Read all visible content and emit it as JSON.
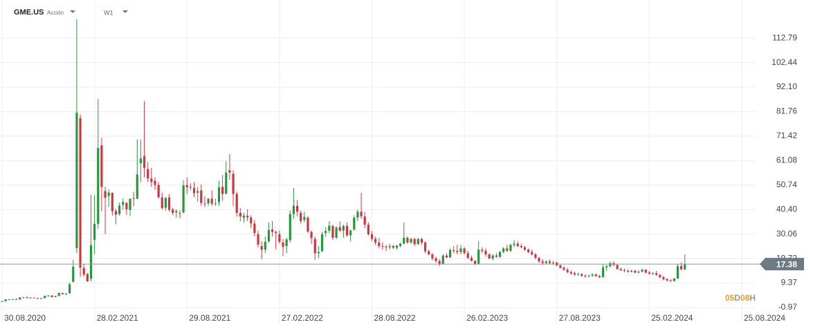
{
  "header": {
    "symbol": "GME.US",
    "instrument": "Acción",
    "timeframe": "W1"
  },
  "chart_data": {
    "type": "candlestick",
    "categories": [
      "30.08.2020",
      null,
      null,
      null,
      null,
      null,
      null,
      null,
      null,
      null,
      null,
      null,
      null,
      null,
      null,
      null,
      null,
      null,
      null,
      null,
      null,
      null,
      null,
      null,
      null,
      null,
      "28.02.2021",
      null,
      null,
      null,
      null,
      null,
      null,
      null,
      null,
      null,
      null,
      null,
      null,
      null,
      null,
      null,
      null,
      null,
      null,
      null,
      null,
      null,
      null,
      null,
      null,
      null,
      "29.08.2021",
      null,
      null,
      null,
      null,
      null,
      null,
      null,
      null,
      null,
      null,
      null,
      null,
      null,
      null,
      null,
      null,
      null,
      null,
      null,
      null,
      null,
      null,
      null,
      null,
      null,
      "27.02.2022",
      null,
      null,
      null,
      null,
      null,
      null,
      null,
      null,
      null,
      null,
      null,
      null,
      null,
      null,
      null,
      null,
      null,
      null,
      null,
      null,
      null,
      null,
      null,
      null,
      null,
      "28.08.2022",
      null,
      null,
      null,
      null,
      null,
      null,
      null,
      null,
      null,
      null,
      null,
      null,
      null,
      null,
      null,
      null,
      null,
      null,
      null,
      null,
      null,
      null,
      null,
      null,
      null,
      "26.02.2023",
      null,
      null,
      null,
      null,
      null,
      null,
      null,
      null,
      null,
      null,
      null,
      null,
      null,
      null,
      null,
      null,
      null,
      null,
      null,
      null,
      null,
      null,
      null,
      null,
      null,
      "27.08.2023",
      null,
      null,
      null,
      null,
      null,
      null,
      null,
      null,
      null,
      null,
      null,
      null,
      null,
      null,
      null,
      null,
      null,
      null,
      null,
      null,
      null,
      null,
      null,
      null,
      null,
      "25.02.2024",
      null,
      null,
      null,
      null,
      null,
      null,
      null,
      null,
      null,
      null,
      null,
      null,
      null,
      null,
      null,
      null,
      null,
      null,
      null,
      null,
      null,
      null,
      null,
      null,
      null,
      "25.08.2024"
    ],
    "ohlc": [
      [
        1.6,
        1.8,
        1.5,
        1.7
      ],
      [
        1.7,
        2.6,
        1.7,
        2.5
      ],
      [
        2.5,
        2.6,
        2.2,
        2.4
      ],
      [
        2.4,
        2.7,
        2.3,
        2.6
      ],
      [
        2.6,
        2.9,
        2.3,
        2.4
      ],
      [
        2.4,
        3.4,
        2.4,
        3.3
      ],
      [
        3.3,
        3.5,
        3.0,
        3.4
      ],
      [
        3.4,
        3.7,
        3.0,
        3.1
      ],
      [
        3.1,
        3.4,
        2.9,
        3.2
      ],
      [
        3.2,
        3.3,
        2.9,
        3.0
      ],
      [
        3.0,
        3.2,
        2.7,
        2.8
      ],
      [
        2.8,
        3.1,
        2.6,
        3.0
      ],
      [
        3.0,
        4.0,
        3.0,
        4.0
      ],
      [
        4.0,
        4.3,
        3.7,
        4.1
      ],
      [
        4.1,
        4.3,
        3.3,
        3.5
      ],
      [
        3.5,
        4.0,
        3.4,
        3.9
      ],
      [
        3.9,
        5.4,
        3.9,
        5.2
      ],
      [
        5.2,
        5.3,
        4.6,
        4.7
      ],
      [
        4.7,
        5.1,
        4.3,
        5.0
      ],
      [
        5.0,
        9.6,
        5.0,
        8.9
      ],
      [
        9.8,
        19.2,
        9.8,
        16.3
      ],
      [
        24.1,
        120.8,
        22.0,
        81.3
      ],
      [
        79.0,
        80.5,
        12.0,
        15.9
      ],
      [
        15.8,
        17.5,
        12.1,
        13.0
      ],
      [
        13.2,
        13.6,
        9.9,
        10.1
      ],
      [
        11.2,
        46.7,
        10.0,
        25.4
      ],
      [
        27.6,
        46.4,
        21.5,
        34.4
      ],
      [
        34.4,
        87.1,
        32.3,
        66.4
      ],
      [
        67.5,
        70.7,
        39.8,
        50.0
      ],
      [
        48.2,
        50.0,
        30.0,
        45.4
      ],
      [
        46.1,
        49.0,
        41.5,
        47.6
      ],
      [
        47.5,
        47.6,
        37.8,
        39.7
      ],
      [
        39.8,
        40.7,
        34.2,
        38.3
      ],
      [
        38.5,
        43.4,
        37.8,
        42.1
      ],
      [
        42.4,
        45.1,
        40.3,
        43.6
      ],
      [
        43.2,
        43.6,
        38.2,
        40.5
      ],
      [
        40.2,
        45.1,
        37.7,
        45.0
      ],
      [
        45.2,
        48.0,
        41.8,
        44.9
      ],
      [
        45.0,
        70.0,
        44.8,
        55.2
      ],
      [
        60.0,
        70.0,
        52.0,
        62.0
      ],
      [
        63.0,
        86.2,
        54.0,
        58.0
      ],
      [
        57.5,
        60.5,
        52.0,
        53.5
      ],
      [
        53.5,
        58.0,
        50.0,
        52.0
      ],
      [
        52.5,
        54.0,
        48.7,
        50.8
      ],
      [
        50.8,
        52.0,
        45.0,
        45.6
      ],
      [
        45.5,
        47.5,
        40.5,
        41.0
      ],
      [
        41.2,
        45.6,
        40.0,
        45.3
      ],
      [
        45.5,
        47.0,
        39.6,
        40.3
      ],
      [
        40.5,
        41.2,
        38.0,
        39.0
      ],
      [
        39.2,
        40.5,
        37.0,
        39.8
      ],
      [
        39.0,
        40.0,
        36.7,
        38.9
      ],
      [
        39.2,
        52.8,
        38.8,
        50.6
      ],
      [
        50.7,
        54.0,
        47.0,
        49.8
      ],
      [
        50.0,
        51.5,
        48.5,
        49.8
      ],
      [
        49.5,
        52.0,
        45.7,
        47.3
      ],
      [
        47.5,
        50.0,
        43.8,
        48.2
      ],
      [
        48.5,
        51.0,
        42.0,
        43.2
      ],
      [
        43.0,
        46.0,
        41.5,
        42.9
      ],
      [
        43.0,
        45.2,
        42.0,
        45.0
      ],
      [
        45.0,
        48.5,
        42.0,
        42.9
      ],
      [
        43.0,
        45.0,
        42.0,
        43.0
      ],
      [
        43.5,
        52.6,
        42.0,
        49.8
      ],
      [
        50.0,
        55.0,
        44.0,
        47.0
      ],
      [
        47.0,
        61.0,
        47.0,
        56.0
      ],
      [
        57.0,
        63.8,
        53.0,
        56.0
      ],
      [
        55.5,
        57.0,
        42.0,
        47.0
      ],
      [
        47.0,
        48.0,
        37.5,
        39.0
      ],
      [
        39.0,
        41.0,
        35.5,
        37.5
      ],
      [
        37.0,
        39.0,
        35.0,
        37.8
      ],
      [
        37.8,
        40.5,
        35.5,
        37.1
      ],
      [
        37.0,
        38.0,
        32.5,
        34.6
      ],
      [
        34.5,
        36.0,
        29.0,
        30.5
      ],
      [
        30.0,
        31.5,
        24.5,
        25.6
      ],
      [
        25.0,
        27.0,
        19.4,
        23.5
      ],
      [
        23.5,
        29.0,
        22.0,
        26.8
      ],
      [
        27.0,
        35.0,
        26.5,
        31.8
      ],
      [
        32.0,
        35.5,
        29.0,
        31.0
      ],
      [
        31.0,
        31.5,
        23.6,
        30.5
      ],
      [
        30.0,
        31.5,
        26.0,
        26.8
      ],
      [
        26.5,
        28.0,
        20.8,
        24.7
      ],
      [
        25.0,
        28.5,
        22.0,
        27.8
      ],
      [
        27.5,
        40.0,
        26.5,
        38.5
      ],
      [
        38.5,
        49.5,
        36.5,
        42.0
      ],
      [
        42.0,
        44.5,
        37.5,
        39.5
      ],
      [
        39.0,
        40.0,
        34.5,
        35.5
      ],
      [
        36.0,
        39.5,
        35.0,
        37.3
      ],
      [
        37.0,
        37.5,
        30.5,
        31.1
      ],
      [
        31.0,
        31.5,
        26.0,
        28.4
      ],
      [
        28.0,
        29.0,
        19.2,
        22.0
      ],
      [
        22.0,
        25.0,
        19.8,
        22.5
      ],
      [
        22.8,
        31.0,
        22.5,
        30.0
      ],
      [
        30.5,
        33.0,
        29.0,
        31.4
      ],
      [
        31.5,
        35.5,
        30.5,
        33.6
      ],
      [
        33.5,
        34.0,
        27.5,
        28.5
      ],
      [
        28.5,
        33.5,
        28.0,
        32.8
      ],
      [
        33.0,
        35.5,
        31.0,
        31.5
      ],
      [
        31.5,
        34.0,
        28.5,
        33.5
      ],
      [
        33.5,
        35.0,
        29.0,
        29.5
      ],
      [
        29.5,
        32.0,
        27.0,
        31.5
      ],
      [
        32.0,
        38.0,
        31.5,
        37.0
      ],
      [
        37.0,
        40.5,
        35.5,
        39.5
      ],
      [
        39.5,
        47.5,
        36.5,
        37.5
      ],
      [
        37.5,
        39.5,
        32.5,
        34.0
      ],
      [
        34.0,
        35.0,
        29.5,
        30.0
      ],
      [
        30.0,
        31.5,
        27.0,
        28.0
      ],
      [
        28.0,
        29.0,
        25.5,
        26.5
      ],
      [
        26.5,
        28.5,
        24.0,
        25.0
      ],
      [
        25.0,
        26.5,
        23.5,
        24.7
      ],
      [
        24.8,
        25.5,
        23.0,
        24.5
      ],
      [
        24.5,
        26.0,
        23.5,
        25.0
      ],
      [
        25.0,
        25.5,
        23.8,
        24.3
      ],
      [
        24.3,
        25.5,
        23.5,
        25.2
      ],
      [
        25.0,
        26.5,
        24.5,
        26.0
      ],
      [
        26.0,
        35.0,
        25.8,
        28.5
      ],
      [
        28.5,
        29.0,
        26.0,
        26.5
      ],
      [
        26.5,
        28.5,
        26.0,
        28.0
      ],
      [
        28.0,
        28.5,
        25.0,
        25.8
      ],
      [
        25.8,
        28.5,
        25.5,
        28.0
      ],
      [
        28.0,
        28.5,
        25.5,
        26.5
      ],
      [
        26.5,
        27.0,
        22.0,
        22.8
      ],
      [
        22.8,
        23.5,
        21.0,
        21.5
      ],
      [
        21.5,
        22.0,
        19.0,
        19.8
      ],
      [
        19.8,
        20.5,
        18.0,
        18.7
      ],
      [
        18.7,
        19.5,
        16.5,
        17.5
      ],
      [
        17.5,
        21.5,
        17.2,
        21.0
      ],
      [
        21.0,
        22.0,
        19.8,
        20.2
      ],
      [
        20.2,
        24.0,
        20.0,
        23.3
      ],
      [
        23.3,
        25.0,
        22.0,
        23.0
      ],
      [
        23.0,
        25.5,
        21.5,
        22.5
      ],
      [
        22.5,
        25.5,
        21.5,
        24.0
      ],
      [
        24.0,
        24.5,
        21.5,
        22.0
      ],
      [
        22.0,
        23.0,
        19.5,
        20.0
      ],
      [
        20.0,
        21.0,
        18.5,
        18.8
      ],
      [
        18.8,
        19.0,
        17.0,
        17.5
      ],
      [
        17.5,
        27.0,
        17.5,
        23.5
      ],
      [
        23.5,
        24.5,
        22.0,
        23.0
      ],
      [
        23.0,
        24.0,
        20.5,
        21.5
      ],
      [
        21.5,
        22.0,
        19.5,
        19.8
      ],
      [
        19.8,
        21.5,
        19.0,
        21.0
      ],
      [
        21.0,
        22.0,
        20.0,
        20.5
      ],
      [
        20.5,
        23.0,
        20.0,
        22.5
      ],
      [
        22.5,
        24.5,
        22.0,
        24.0
      ],
      [
        24.0,
        25.5,
        22.5,
        23.0
      ],
      [
        23.0,
        26.0,
        22.5,
        25.5
      ],
      [
        25.5,
        27.5,
        24.5,
        26.0
      ],
      [
        26.0,
        27.0,
        24.5,
        25.0
      ],
      [
        25.0,
        26.0,
        24.0,
        24.5
      ],
      [
        24.5,
        25.0,
        23.0,
        23.5
      ],
      [
        23.5,
        24.0,
        22.0,
        22.5
      ],
      [
        22.5,
        23.5,
        21.0,
        21.5
      ],
      [
        21.5,
        22.0,
        19.5,
        20.0
      ],
      [
        20.0,
        20.5,
        18.0,
        18.5
      ],
      [
        18.5,
        19.5,
        17.0,
        17.8
      ],
      [
        17.8,
        19.0,
        17.5,
        18.5
      ],
      [
        18.5,
        19.2,
        17.5,
        17.8
      ],
      [
        17.8,
        18.8,
        17.0,
        18.0
      ],
      [
        18.0,
        18.5,
        16.5,
        16.8
      ],
      [
        16.8,
        17.5,
        15.5,
        15.8
      ],
      [
        15.8,
        16.5,
        14.5,
        15.0
      ],
      [
        15.0,
        15.8,
        13.5,
        14.0
      ],
      [
        14.0,
        14.8,
        12.8,
        13.5
      ],
      [
        13.5,
        14.2,
        12.5,
        13.0
      ],
      [
        13.0,
        13.8,
        12.5,
        13.2
      ],
      [
        13.2,
        13.5,
        12.0,
        12.5
      ],
      [
        12.5,
        13.0,
        11.5,
        12.2
      ],
      [
        12.2,
        13.0,
        11.8,
        12.5
      ],
      [
        12.5,
        13.5,
        12.0,
        13.0
      ],
      [
        13.0,
        13.5,
        12.0,
        12.3
      ],
      [
        12.3,
        12.8,
        11.5,
        11.8
      ],
      [
        11.8,
        17.5,
        11.8,
        16.0
      ],
      [
        16.0,
        17.0,
        14.5,
        16.5
      ],
      [
        16.5,
        18.5,
        16.0,
        17.8
      ],
      [
        17.8,
        18.5,
        16.5,
        17.0
      ],
      [
        17.0,
        17.5,
        15.0,
        15.3
      ],
      [
        15.3,
        16.0,
        14.5,
        14.8
      ],
      [
        14.8,
        15.5,
        14.0,
        14.5
      ],
      [
        14.5,
        15.2,
        13.8,
        14.2
      ],
      [
        14.2,
        15.0,
        13.8,
        14.6
      ],
      [
        14.6,
        15.0,
        13.5,
        13.8
      ],
      [
        13.8,
        14.8,
        13.5,
        14.2
      ],
      [
        14.2,
        15.5,
        14.0,
        15.0
      ],
      [
        15.0,
        15.3,
        13.5,
        13.8
      ],
      [
        13.8,
        14.5,
        13.0,
        13.3
      ],
      [
        13.3,
        14.0,
        12.8,
        13.5
      ],
      [
        13.5,
        14.5,
        12.5,
        12.8
      ],
      [
        12.8,
        13.2,
        11.5,
        11.8
      ],
      [
        11.8,
        12.5,
        10.5,
        11.0
      ],
      [
        11.0,
        11.5,
        10.0,
        10.5
      ],
      [
        10.5,
        11.0,
        9.9,
        10.2
      ],
      [
        10.2,
        11.5,
        10.0,
        11.3
      ],
      [
        11.3,
        17.5,
        11.2,
        16.5
      ],
      [
        16.5,
        18.0,
        14.8,
        15.2
      ],
      [
        15.2,
        21.5,
        14.8,
        17.38
      ],
      null,
      null,
      null,
      null,
      null,
      null,
      null,
      null,
      null,
      null,
      null,
      null,
      null,
      null,
      null,
      null
    ],
    "up_color": "#27973d",
    "down_color": "#d3333f",
    "ylim": [
      -3.01,
      120.7
    ],
    "yticks": [
      -0.97,
      9.37,
      19.72,
      30.06,
      {
        "value": 40.4,
        "label": "40.40"
      },
      50.74,
      61.08,
      71.42,
      81.76,
      {
        "value": 92.1,
        "label": "92.10"
      },
      102.44,
      112.79
    ],
    "grid": true,
    "current_price": 17.38,
    "countdown": [
      "05",
      "D",
      "08",
      "H"
    ]
  }
}
